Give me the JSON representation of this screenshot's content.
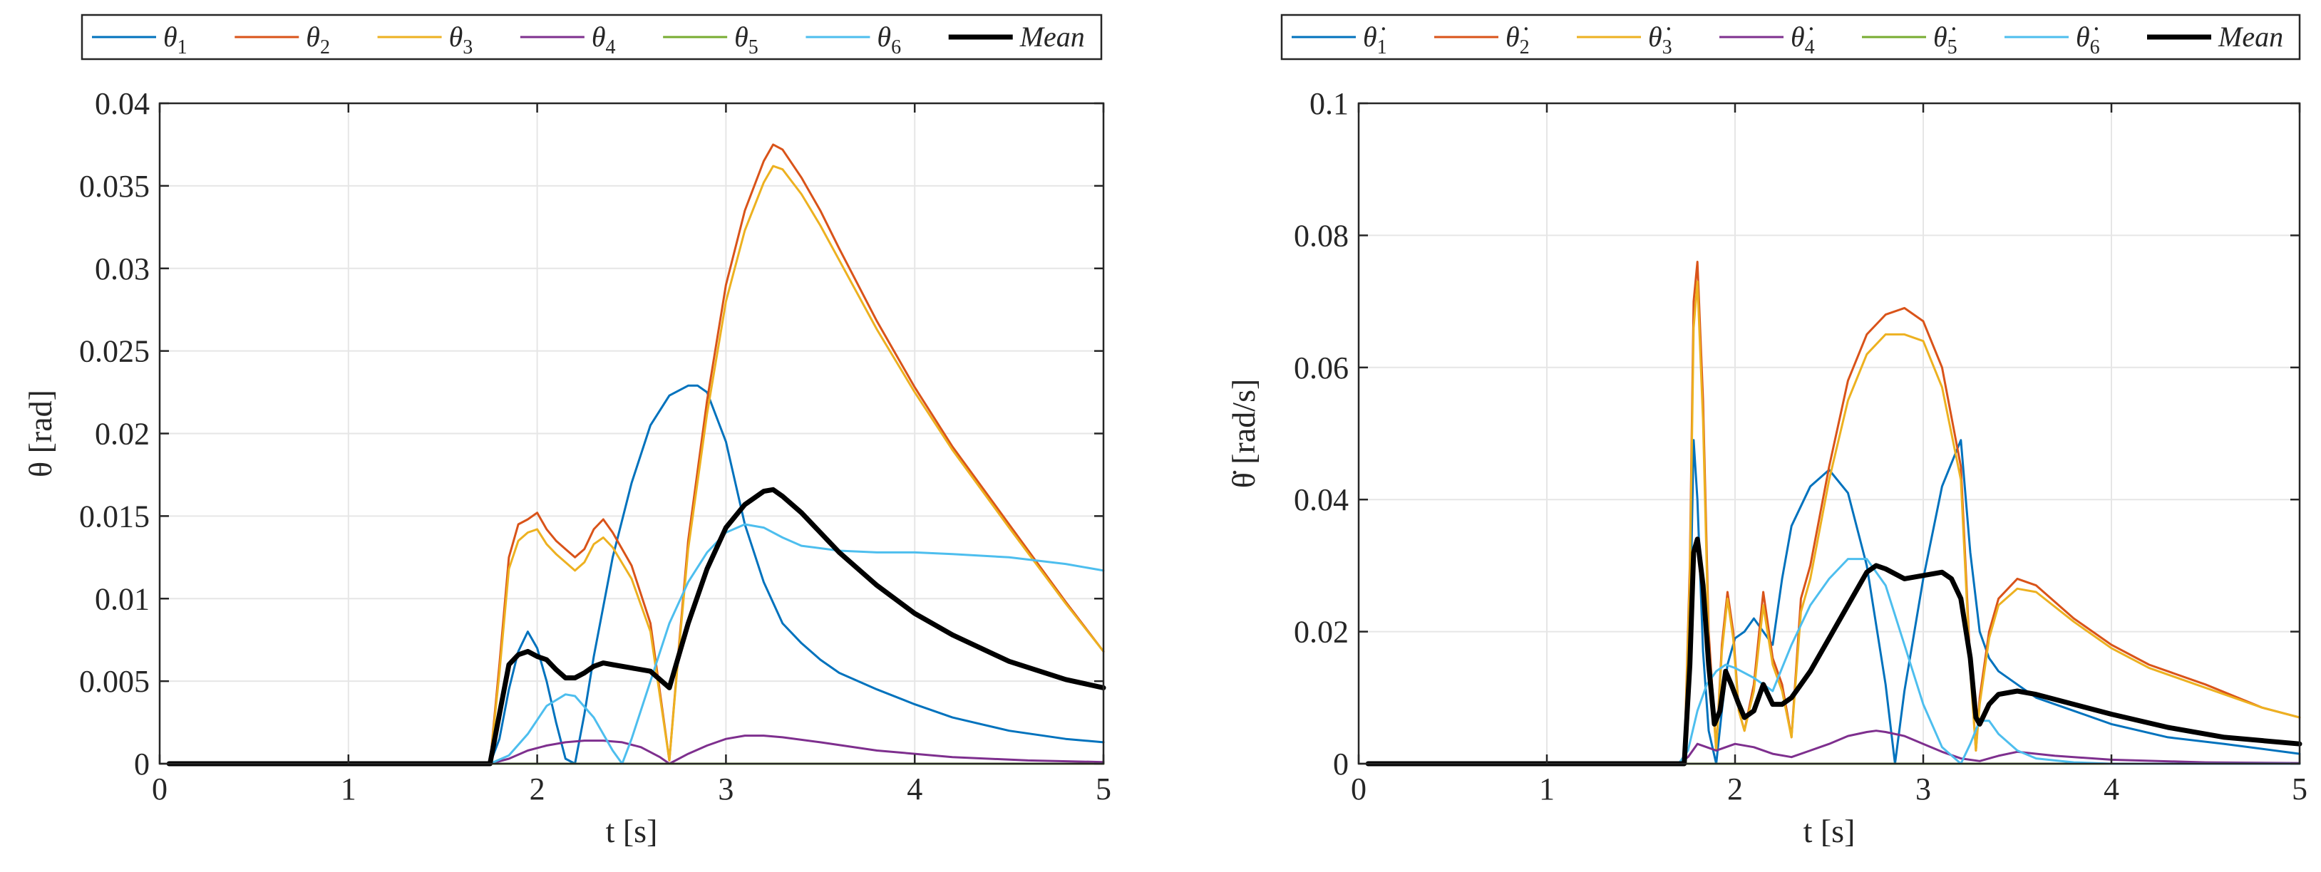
{
  "figure": {
    "panels": [
      "theta-panel",
      "theta-dot-panel"
    ]
  },
  "chart_data": [
    {
      "type": "line",
      "title": "",
      "xlabel": "t [s]",
      "ylabel": "θ [rad]",
      "xlim": [
        0,
        5
      ],
      "ylim": [
        0,
        0.04
      ],
      "xticks": [
        0,
        1,
        2,
        3,
        4,
        5
      ],
      "xtick_labels": [
        "0",
        "1",
        "2",
        "3",
        "4",
        "5"
      ],
      "yticks": [
        0,
        0.005,
        0.01,
        0.015,
        0.02,
        0.025,
        0.03,
        0.035,
        0.04
      ],
      "ytick_labels": [
        "0",
        "0.005",
        "0.01",
        "0.015",
        "0.02",
        "0.025",
        "0.03",
        "0.035",
        "0.04"
      ],
      "grid": true,
      "legend_position": "top, outside, horizontal",
      "series": [
        {
          "name": "θ1",
          "label_base": "θ",
          "label_sub": "1",
          "color": "#0072BD",
          "line_width": 3,
          "x": [
            0.05,
            1.7,
            1.75,
            1.8,
            1.85,
            1.9,
            1.95,
            2.0,
            2.05,
            2.1,
            2.15,
            2.2,
            2.25,
            2.3,
            2.4,
            2.5,
            2.6,
            2.7,
            2.8,
            2.85,
            2.9,
            3.0,
            3.1,
            3.2,
            3.3,
            3.4,
            3.5,
            3.6,
            3.8,
            4.0,
            4.2,
            4.5,
            4.8,
            5.0
          ],
          "y": [
            0,
            0,
            0,
            0.0015,
            0.0045,
            0.0068,
            0.008,
            0.007,
            0.005,
            0.0025,
            0.0003,
            0,
            0.003,
            0.0065,
            0.0125,
            0.017,
            0.0205,
            0.0223,
            0.0229,
            0.0229,
            0.0225,
            0.0195,
            0.0145,
            0.011,
            0.0085,
            0.0073,
            0.0063,
            0.0055,
            0.0045,
            0.0036,
            0.0028,
            0.002,
            0.0015,
            0.0013
          ]
        },
        {
          "name": "θ2",
          "label_base": "θ",
          "label_sub": "2",
          "color": "#D95319",
          "line_width": 3,
          "x": [
            0.05,
            1.7,
            1.75,
            1.8,
            1.85,
            1.9,
            1.95,
            2.0,
            2.05,
            2.1,
            2.15,
            2.2,
            2.25,
            2.3,
            2.35,
            2.4,
            2.5,
            2.6,
            2.7,
            2.75,
            2.8,
            2.9,
            3.0,
            3.1,
            3.2,
            3.25,
            3.3,
            3.4,
            3.5,
            3.6,
            3.8,
            4.0,
            4.2,
            4.5,
            4.8,
            5.0
          ],
          "y": [
            0,
            0,
            0,
            0.006,
            0.0125,
            0.0145,
            0.0148,
            0.0152,
            0.0142,
            0.0135,
            0.013,
            0.0125,
            0.013,
            0.0142,
            0.0148,
            0.014,
            0.012,
            0.0085,
            0.0002,
            0.007,
            0.0135,
            0.022,
            0.029,
            0.0335,
            0.0365,
            0.0375,
            0.0372,
            0.0355,
            0.0335,
            0.0312,
            0.0268,
            0.0228,
            0.0192,
            0.0145,
            0.0098,
            0.0068
          ]
        },
        {
          "name": "θ3",
          "label_base": "θ",
          "label_sub": "3",
          "color": "#EDB120",
          "line_width": 3,
          "x": [
            0.05,
            1.7,
            1.75,
            1.8,
            1.85,
            1.9,
            1.95,
            2.0,
            2.05,
            2.1,
            2.15,
            2.2,
            2.25,
            2.3,
            2.35,
            2.4,
            2.5,
            2.6,
            2.7,
            2.75,
            2.8,
            2.9,
            3.0,
            3.1,
            3.2,
            3.25,
            3.3,
            3.4,
            3.5,
            3.6,
            3.8,
            4.0,
            4.2,
            4.5,
            4.8,
            5.0
          ],
          "y": [
            0,
            0,
            0,
            0.0055,
            0.0118,
            0.0135,
            0.014,
            0.0142,
            0.0133,
            0.0127,
            0.0122,
            0.0117,
            0.0122,
            0.0133,
            0.0137,
            0.0131,
            0.0112,
            0.008,
            0.0002,
            0.0068,
            0.013,
            0.0212,
            0.028,
            0.0323,
            0.0352,
            0.0362,
            0.036,
            0.0345,
            0.0326,
            0.0305,
            0.0263,
            0.0225,
            0.019,
            0.0143,
            0.0097,
            0.0068
          ]
        },
        {
          "name": "θ4",
          "label_base": "θ",
          "label_sub": "4",
          "color": "#7E2F8E",
          "line_width": 3,
          "x": [
            0.05,
            1.75,
            1.85,
            1.95,
            2.05,
            2.15,
            2.25,
            2.35,
            2.45,
            2.55,
            2.65,
            2.7,
            2.8,
            2.9,
            3.0,
            3.1,
            3.2,
            3.3,
            3.5,
            3.8,
            4.2,
            4.6,
            5.0
          ],
          "y": [
            0,
            0,
            0.0003,
            0.0008,
            0.0011,
            0.0013,
            0.0014,
            0.0014,
            0.0013,
            0.001,
            0.0004,
            0,
            0.0006,
            0.0011,
            0.0015,
            0.0017,
            0.0017,
            0.0016,
            0.0013,
            0.0008,
            0.0004,
            0.0002,
            0.0001
          ]
        },
        {
          "name": "θ5",
          "label_base": "θ",
          "label_sub": "5",
          "color": "#77AC30",
          "line_width": 3,
          "x": [
            0.05,
            5.0
          ],
          "y": [
            0,
            0
          ]
        },
        {
          "name": "θ6",
          "label_base": "θ",
          "label_sub": "6",
          "color": "#4DBEEE",
          "line_width": 3,
          "x": [
            0.05,
            1.75,
            1.85,
            1.95,
            2.05,
            2.15,
            2.2,
            2.3,
            2.4,
            2.45,
            2.5,
            2.6,
            2.7,
            2.8,
            2.9,
            3.0,
            3.1,
            3.2,
            3.3,
            3.4,
            3.6,
            3.8,
            4.0,
            4.2,
            4.5,
            4.8,
            5.0
          ],
          "y": [
            0,
            0,
            0.0005,
            0.0018,
            0.0035,
            0.0042,
            0.0041,
            0.0028,
            0.0008,
            0,
            0.0015,
            0.005,
            0.0085,
            0.011,
            0.0128,
            0.014,
            0.0145,
            0.0143,
            0.0137,
            0.0132,
            0.0129,
            0.0128,
            0.0128,
            0.0127,
            0.0125,
            0.0121,
            0.0117
          ]
        },
        {
          "name": "Mean",
          "label_base": "Mean",
          "label_sub": "",
          "color": "#000000",
          "line_width": 7,
          "x": [
            0.05,
            1.7,
            1.75,
            1.8,
            1.85,
            1.9,
            1.95,
            2.0,
            2.05,
            2.1,
            2.15,
            2.2,
            2.25,
            2.3,
            2.35,
            2.4,
            2.5,
            2.6,
            2.7,
            2.8,
            2.9,
            3.0,
            3.1,
            3.2,
            3.25,
            3.3,
            3.4,
            3.5,
            3.6,
            3.8,
            4.0,
            4.2,
            4.5,
            4.8,
            5.0
          ],
          "y": [
            0,
            0,
            0,
            0.003,
            0.006,
            0.0066,
            0.0068,
            0.0065,
            0.0063,
            0.0057,
            0.0052,
            0.0052,
            0.0055,
            0.0059,
            0.0061,
            0.006,
            0.0058,
            0.0056,
            0.0046,
            0.0085,
            0.0118,
            0.0143,
            0.0157,
            0.0165,
            0.0166,
            0.0162,
            0.0152,
            0.014,
            0.0128,
            0.0108,
            0.0091,
            0.0078,
            0.0062,
            0.0051,
            0.0046
          ]
        }
      ]
    },
    {
      "type": "line",
      "title": "",
      "xlabel": "t [s]",
      "ylabel": "θ̇ [rad/s]",
      "xlim": [
        0,
        5
      ],
      "ylim": [
        0,
        0.1
      ],
      "xticks": [
        0,
        1,
        2,
        3,
        4,
        5
      ],
      "xtick_labels": [
        "0",
        "1",
        "2",
        "3",
        "4",
        "5"
      ],
      "yticks": [
        0,
        0.02,
        0.04,
        0.06,
        0.08,
        0.1
      ],
      "ytick_labels": [
        "0",
        "0.02",
        "0.04",
        "0.06",
        "0.08",
        "0.1"
      ],
      "grid": true,
      "legend_position": "top, outside, horizontal",
      "series": [
        {
          "name": "θ̇1",
          "label_base": "θ̇",
          "label_sub": "1",
          "color": "#0072BD",
          "line_width": 3,
          "x": [
            0.05,
            1.7,
            1.73,
            1.76,
            1.78,
            1.8,
            1.83,
            1.86,
            1.9,
            1.93,
            1.96,
            2.0,
            2.05,
            2.1,
            2.15,
            2.2,
            2.25,
            2.3,
            2.4,
            2.5,
            2.6,
            2.7,
            2.8,
            2.85,
            2.9,
            3.0,
            3.1,
            3.2,
            3.25,
            3.3,
            3.35,
            3.4,
            3.5,
            3.6,
            3.8,
            4.0,
            4.3,
            4.6,
            5.0
          ],
          "y": [
            0,
            0,
            0,
            0.02,
            0.049,
            0.04,
            0.017,
            0.005,
            0,
            0.008,
            0.015,
            0.019,
            0.02,
            0.022,
            0.02,
            0.018,
            0.028,
            0.036,
            0.042,
            0.0445,
            0.041,
            0.03,
            0.012,
            0,
            0.011,
            0.028,
            0.042,
            0.049,
            0.032,
            0.02,
            0.016,
            0.014,
            0.012,
            0.01,
            0.008,
            0.006,
            0.004,
            0.003,
            0.0015
          ]
        },
        {
          "name": "θ̇2",
          "label_base": "θ̇",
          "label_sub": "2",
          "color": "#D95319",
          "line_width": 3,
          "x": [
            0.05,
            1.7,
            1.73,
            1.76,
            1.78,
            1.8,
            1.83,
            1.86,
            1.9,
            1.93,
            1.96,
            1.99,
            2.02,
            2.05,
            2.1,
            2.15,
            2.2,
            2.25,
            2.3,
            2.35,
            2.4,
            2.5,
            2.6,
            2.7,
            2.8,
            2.9,
            3.0,
            3.1,
            3.2,
            3.25,
            3.28,
            3.3,
            3.35,
            3.4,
            3.5,
            3.6,
            3.8,
            4.0,
            4.2,
            4.5,
            4.8,
            5.0
          ],
          "y": [
            0,
            0,
            0,
            0.03,
            0.07,
            0.076,
            0.055,
            0.02,
            0.002,
            0.018,
            0.026,
            0.02,
            0.008,
            0.005,
            0.012,
            0.026,
            0.016,
            0.012,
            0.004,
            0.025,
            0.03,
            0.045,
            0.058,
            0.065,
            0.068,
            0.069,
            0.067,
            0.06,
            0.045,
            0.015,
            0.002,
            0.01,
            0.02,
            0.025,
            0.028,
            0.027,
            0.022,
            0.018,
            0.015,
            0.012,
            0.0085,
            0.007
          ]
        },
        {
          "name": "θ̇3",
          "label_base": "θ̇",
          "label_sub": "3",
          "color": "#EDB120",
          "line_width": 3,
          "x": [
            0.05,
            1.7,
            1.73,
            1.76,
            1.78,
            1.8,
            1.83,
            1.86,
            1.9,
            1.93,
            1.96,
            1.99,
            2.02,
            2.05,
            2.1,
            2.15,
            2.2,
            2.25,
            2.3,
            2.35,
            2.4,
            2.5,
            2.6,
            2.7,
            2.8,
            2.9,
            3.0,
            3.1,
            3.2,
            3.25,
            3.28,
            3.3,
            3.35,
            3.4,
            3.5,
            3.6,
            3.8,
            4.0,
            4.2,
            4.5,
            4.8,
            5.0
          ],
          "y": [
            0,
            0,
            0,
            0.028,
            0.066,
            0.073,
            0.052,
            0.018,
            0.002,
            0.017,
            0.025,
            0.019,
            0.008,
            0.005,
            0.011,
            0.024,
            0.015,
            0.011,
            0.004,
            0.023,
            0.028,
            0.043,
            0.055,
            0.062,
            0.065,
            0.065,
            0.064,
            0.057,
            0.043,
            0.014,
            0.002,
            0.009,
            0.019,
            0.024,
            0.0265,
            0.026,
            0.0215,
            0.0175,
            0.0145,
            0.0115,
            0.0085,
            0.007
          ]
        },
        {
          "name": "θ̇4",
          "label_base": "θ̇",
          "label_sub": "4",
          "color": "#7E2F8E",
          "line_width": 3,
          "x": [
            0.05,
            1.7,
            1.75,
            1.8,
            1.85,
            1.9,
            2.0,
            2.1,
            2.2,
            2.3,
            2.4,
            2.5,
            2.6,
            2.7,
            2.75,
            2.8,
            2.9,
            3.0,
            3.1,
            3.2,
            3.3,
            3.4,
            3.5,
            3.7,
            4.0,
            4.5,
            5.0
          ],
          "y": [
            0,
            0,
            0.001,
            0.003,
            0.0025,
            0.002,
            0.003,
            0.0025,
            0.0015,
            0.001,
            0.002,
            0.003,
            0.0042,
            0.0048,
            0.005,
            0.0048,
            0.0042,
            0.003,
            0.0018,
            0.0008,
            0.0004,
            0.0012,
            0.0018,
            0.0012,
            0.0006,
            0.0002,
            0.0001
          ]
        },
        {
          "name": "θ̇5",
          "label_base": "θ̇",
          "label_sub": "5",
          "color": "#77AC30",
          "line_width": 3,
          "x": [
            0.05,
            5.0
          ],
          "y": [
            0,
            0
          ]
        },
        {
          "name": "θ̇6",
          "label_base": "θ̇",
          "label_sub": "6",
          "color": "#4DBEEE",
          "line_width": 3,
          "x": [
            0.05,
            1.7,
            1.75,
            1.8,
            1.85,
            1.9,
            1.95,
            2.0,
            2.1,
            2.2,
            2.3,
            2.4,
            2.5,
            2.6,
            2.7,
            2.8,
            2.9,
            3.0,
            3.1,
            3.2,
            3.25,
            3.3,
            3.35,
            3.4,
            3.5,
            3.6,
            3.8,
            4.0,
            5.0
          ],
          "y": [
            0,
            0,
            0.002,
            0.008,
            0.012,
            0.014,
            0.015,
            0.0145,
            0.013,
            0.011,
            0.018,
            0.024,
            0.028,
            0.031,
            0.031,
            0.027,
            0.018,
            0.009,
            0.0025,
            0,
            0.003,
            0.0065,
            0.0065,
            0.0045,
            0.002,
            0.0008,
            0.0002,
            0,
            0
          ]
        },
        {
          "name": "Mean",
          "label_base": "Mean",
          "label_sub": "",
          "color": "#000000",
          "line_width": 7,
          "x": [
            0.05,
            1.7,
            1.73,
            1.76,
            1.78,
            1.8,
            1.83,
            1.86,
            1.89,
            1.92,
            1.95,
            1.98,
            2.02,
            2.05,
            2.1,
            2.15,
            2.2,
            2.25,
            2.3,
            2.35,
            2.4,
            2.5,
            2.6,
            2.7,
            2.75,
            2.8,
            2.9,
            3.0,
            3.1,
            3.15,
            3.2,
            3.25,
            3.28,
            3.3,
            3.35,
            3.4,
            3.5,
            3.6,
            3.8,
            4.0,
            4.3,
            4.6,
            5.0
          ],
          "y": [
            0,
            0,
            0,
            0.015,
            0.032,
            0.034,
            0.027,
            0.015,
            0.006,
            0.008,
            0.014,
            0.012,
            0.009,
            0.007,
            0.008,
            0.012,
            0.009,
            0.009,
            0.01,
            0.012,
            0.014,
            0.019,
            0.024,
            0.029,
            0.03,
            0.0295,
            0.028,
            0.0285,
            0.029,
            0.028,
            0.025,
            0.016,
            0.007,
            0.006,
            0.009,
            0.0105,
            0.011,
            0.0105,
            0.009,
            0.0075,
            0.0055,
            0.004,
            0.003
          ]
        }
      ]
    }
  ]
}
